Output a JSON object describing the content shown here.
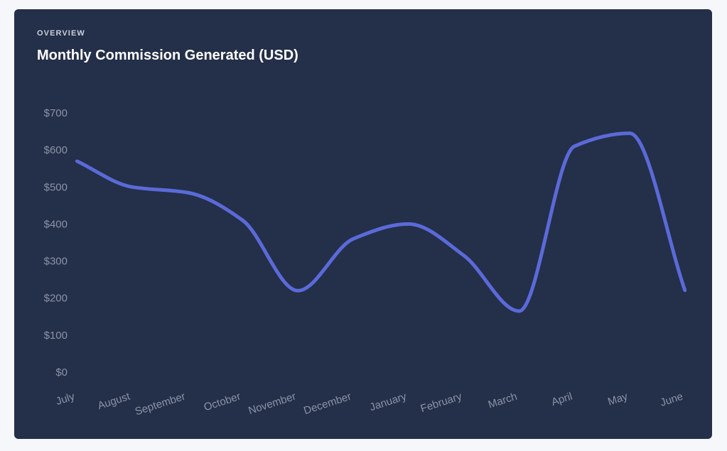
{
  "header": {
    "eyebrow": "OVERVIEW",
    "title": "Monthly Commission Generated (USD)"
  },
  "colors": {
    "background": "#f5f7fb",
    "card": "#242f49",
    "line": "#5b6ad9",
    "tick_text": "#8b93a7"
  },
  "chart_data": {
    "type": "line",
    "title": "Monthly Commission Generated (USD)",
    "xlabel": "",
    "ylabel": "",
    "categories": [
      "July",
      "August",
      "September",
      "October",
      "November",
      "December",
      "January",
      "February",
      "March",
      "April",
      "May",
      "June"
    ],
    "series": [
      {
        "values": [
          570,
          500,
          485,
          410,
          220,
          360,
          400,
          315,
          165,
          610,
          645,
          220
        ]
      }
    ],
    "ylim": [
      0,
      700
    ],
    "yticks": [
      0,
      100,
      200,
      300,
      400,
      500,
      600,
      700
    ],
    "ytick_labels": [
      "$0",
      "$100",
      "$200",
      "$300",
      "$400",
      "$500",
      "$600",
      "$700"
    ],
    "grid": false,
    "legend": "none",
    "curve": "smooth"
  }
}
